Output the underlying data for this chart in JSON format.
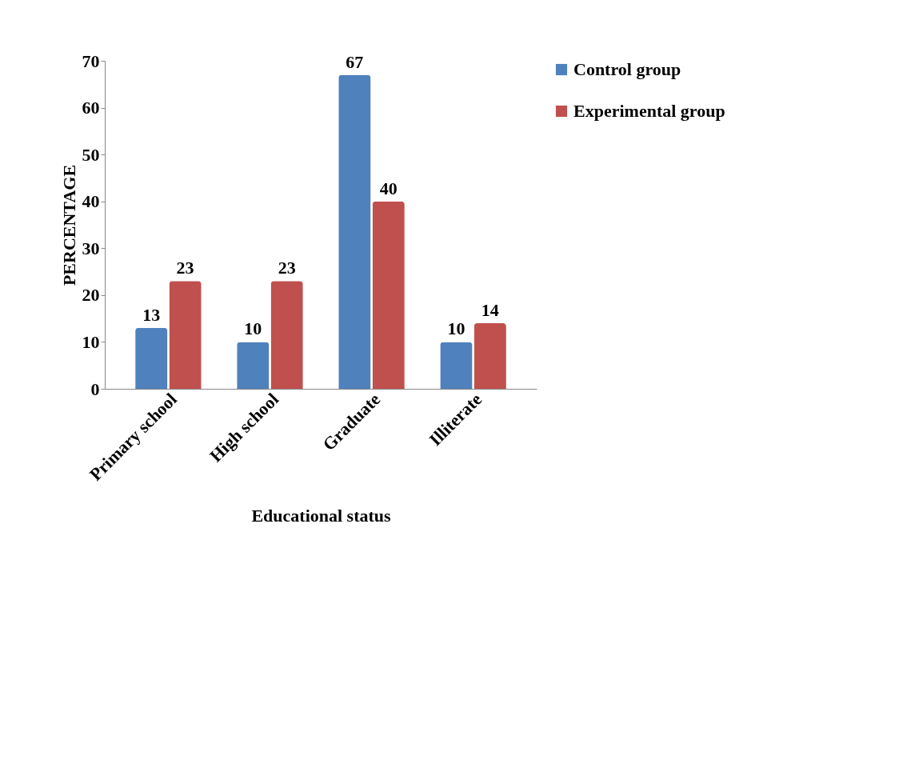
{
  "chart_data": {
    "type": "bar",
    "xlabel": "Educational status",
    "ylabel": "PERCENTAGE",
    "categories": [
      "Primary school",
      "High school",
      "Graduate",
      "Illiterate"
    ],
    "series": [
      {
        "name": "Control group",
        "color": "#4f81bd",
        "values": [
          13,
          10,
          67,
          10
        ]
      },
      {
        "name": "Experimental group",
        "color": "#c0504d",
        "values": [
          23,
          23,
          40,
          14
        ]
      }
    ],
    "ylim": [
      0,
      70
    ],
    "yticks": [
      0,
      10,
      20,
      30,
      40,
      50,
      60,
      70
    ],
    "data_labels": true,
    "legend": "top right"
  }
}
